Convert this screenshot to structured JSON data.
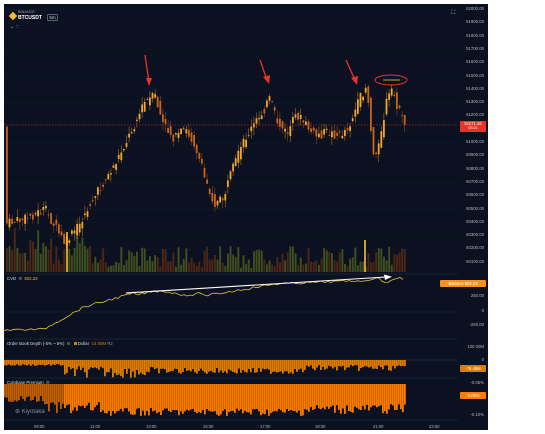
{
  "header": {
    "exchange": "BINANCE",
    "symbol": "BTCUSDT",
    "separator": "·",
    "interval": "5m",
    "collapse_glyph": "⌄",
    "collapse_dots": "∵"
  },
  "price_axis": {
    "ticks": [
      "52000.00",
      "51900.00",
      "51800.00",
      "51700.00",
      "51600.00",
      "51500.00",
      "51400.00",
      "51300.00",
      "51200.00",
      "51100.00",
      "51000.00",
      "50900.00",
      "50800.00",
      "50700.00",
      "50600.00",
      "50500.00",
      "50400.00",
      "50300.00",
      "50200.00",
      "50100.00"
    ],
    "last_price": "51171.16",
    "countdown": "03:21"
  },
  "cvd": {
    "label": "CVD",
    "value": "502.23",
    "badge_label": "Balance",
    "badge_value": "502.23",
    "ticks": [
      "250.00",
      "0",
      "-250.00"
    ]
  },
  "orderbook": {
    "label": "Order Book Depth (-5% ~ 5%)",
    "sub_label": "Dollar",
    "sub_value": "-14.05M",
    "sub_extra": "R2",
    "ticks": [
      "100.00M",
      "0"
    ],
    "badge_value": "-76.45M"
  },
  "coinbase": {
    "label": "Coinbase Premium",
    "ticks": [
      "-0.05%",
      "-0.10%"
    ],
    "badge_value": "-0.08%"
  },
  "x_axis": [
    "09:00",
    "11:00",
    "13:00",
    "15:00",
    "17:00",
    "19:00",
    "21:00",
    "23:00"
  ],
  "watermark": "Kiyotaka",
  "colors": {
    "background": "#0b1120",
    "candle": "#f5a623",
    "cvd_line": "#e0c233",
    "orderbook_bars": "#e07b00",
    "coinbase_bars": "#ff7a00",
    "annotation_arrows": "#e8332a",
    "trend_line": "#ffffff",
    "price_badge": "#e8332a",
    "cvd_badge": "#f7931a"
  },
  "annotations": {
    "arrows": 3,
    "circled_highlight": 1,
    "trend_line": "rising CVD"
  }
}
